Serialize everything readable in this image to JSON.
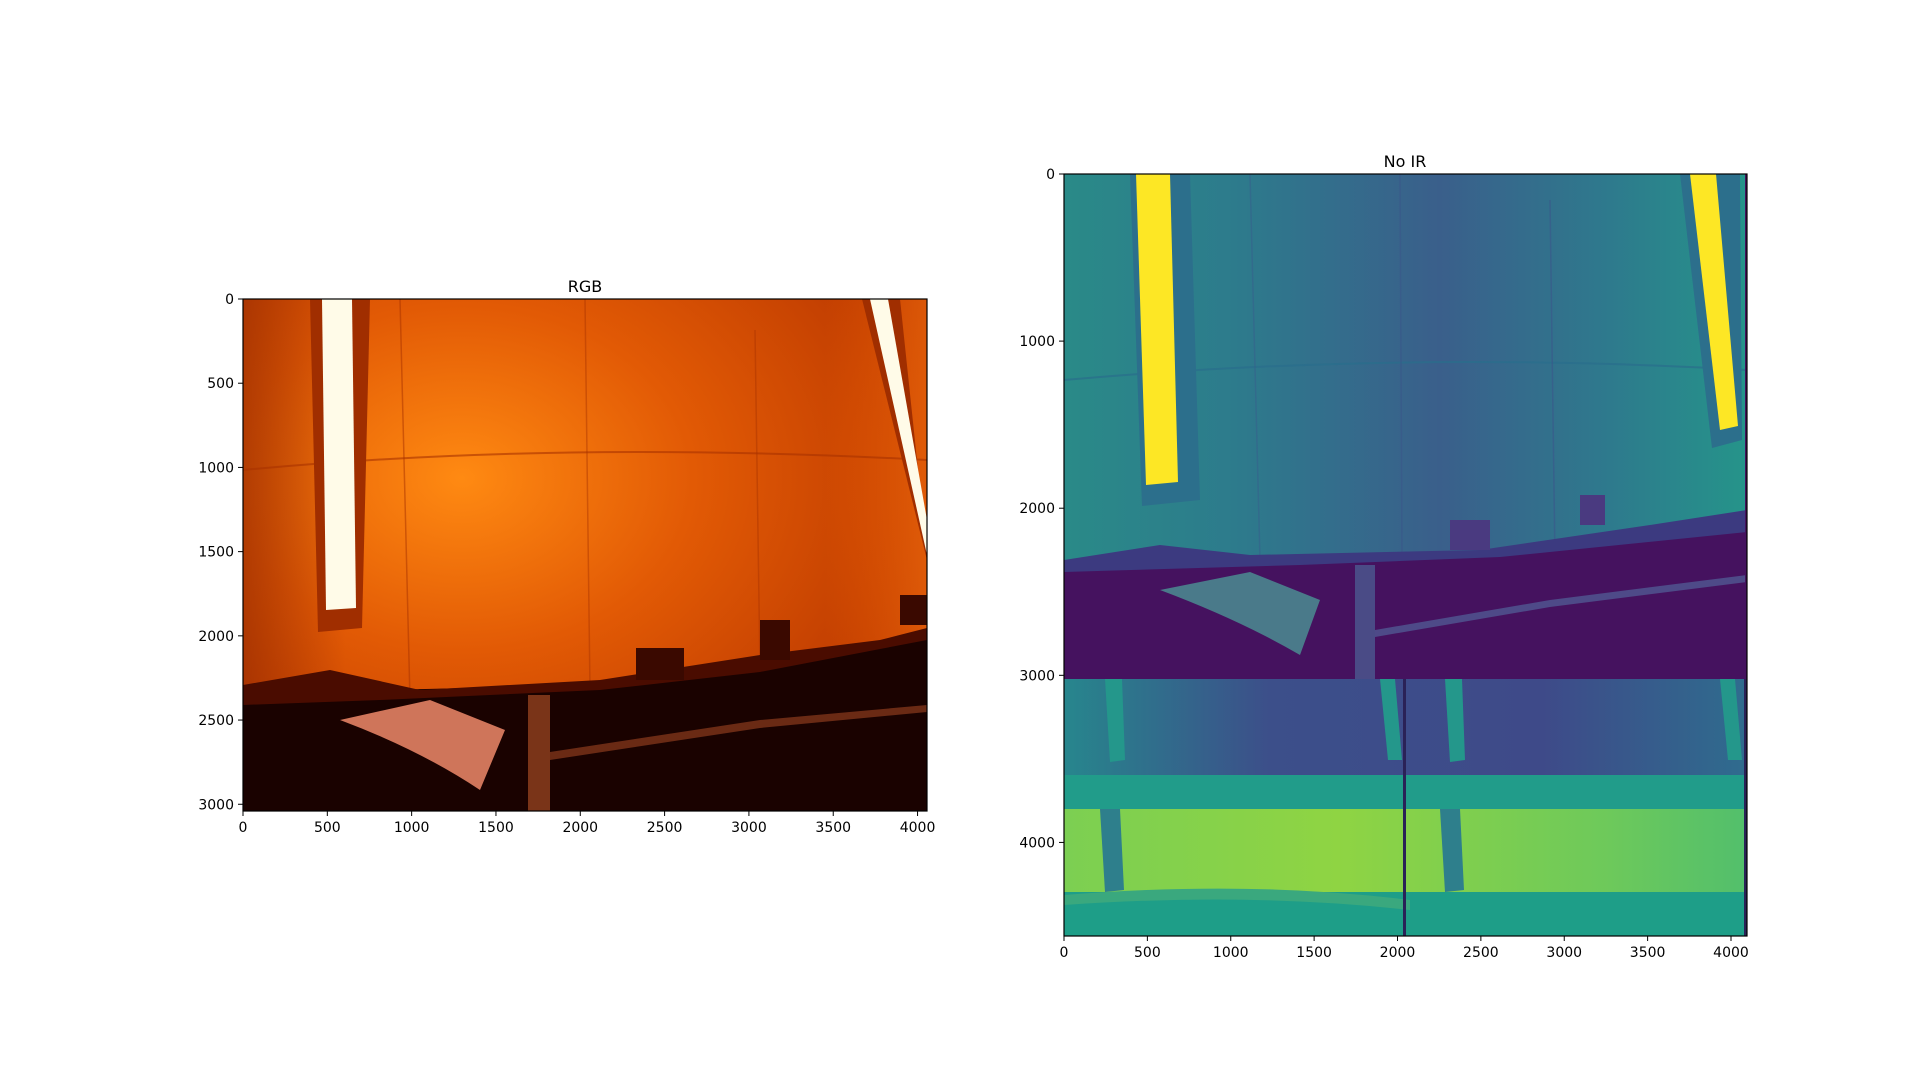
{
  "chart_data": [
    {
      "type": "image",
      "title": "RGB",
      "colormap": "afmhot",
      "xlim": [
        0,
        4056
      ],
      "ylim": [
        3040,
        0
      ],
      "xticks": [
        0,
        500,
        1000,
        1500,
        2000,
        2500,
        3000,
        3500,
        4000
      ],
      "yticks": [
        0,
        500,
        1000,
        1500,
        2000,
        2500,
        3000
      ],
      "xtick_labels": [
        "0",
        "500",
        "1000",
        "1500",
        "2000",
        "2500",
        "3000",
        "3500",
        "4000"
      ],
      "ytick_labels": [
        "0",
        "500",
        "1000",
        "1500",
        "2000",
        "2500",
        "3000"
      ],
      "colors": {
        "dark": "#1a0200",
        "mid": "#c63d00",
        "bright": "#ff7a10",
        "highlight": "#fffbe8"
      }
    },
    {
      "type": "image",
      "title": "No IR",
      "colormap": "viridis",
      "xlim": [
        0,
        4096
      ],
      "ylim": [
        4560,
        0
      ],
      "xticks": [
        0,
        500,
        1000,
        1500,
        2000,
        2500,
        3000,
        3500,
        4000
      ],
      "yticks": [
        0,
        1000,
        2000,
        3000,
        4000
      ],
      "xtick_labels": [
        "0",
        "500",
        "1000",
        "1500",
        "2000",
        "2500",
        "3000",
        "3500",
        "4000"
      ],
      "ytick_labels": [
        "0",
        "1000",
        "2000",
        "3000",
        "4000"
      ],
      "colors": {
        "dark": "#45125f",
        "low": "#3d5c8e",
        "mid": "#24928c",
        "high": "#8fd445",
        "max": "#fde725"
      }
    }
  ]
}
